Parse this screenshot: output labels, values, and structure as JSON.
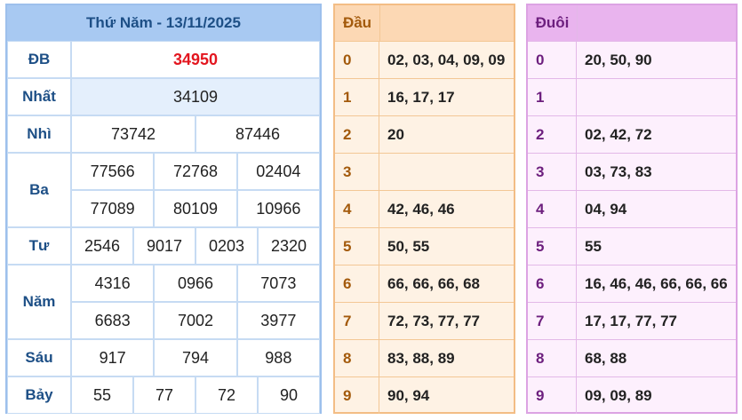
{
  "results": {
    "title": "Thứ Năm - 13/11/2025",
    "prizes": [
      {
        "label": "ĐB",
        "rows": [
          [
            "34950"
          ]
        ]
      },
      {
        "label": "Nhất",
        "rows": [
          [
            "34109"
          ]
        ]
      },
      {
        "label": "Nhì",
        "rows": [
          [
            "73742",
            "87446"
          ]
        ]
      },
      {
        "label": "Ba",
        "rows": [
          [
            "77566",
            "72768",
            "02404"
          ],
          [
            "77089",
            "80109",
            "10966"
          ]
        ]
      },
      {
        "label": "Tư",
        "rows": [
          [
            "2546",
            "9017",
            "0203",
            "2320"
          ]
        ]
      },
      {
        "label": "Năm",
        "rows": [
          [
            "4316",
            "0966",
            "7073"
          ],
          [
            "6683",
            "7002",
            "3977"
          ]
        ]
      },
      {
        "label": "Sáu",
        "rows": [
          [
            "917",
            "794",
            "988"
          ]
        ]
      },
      {
        "label": "Bảy",
        "rows": [
          [
            "55",
            "77",
            "72",
            "90"
          ]
        ]
      }
    ]
  },
  "head": {
    "title": "Đầu",
    "rows": [
      {
        "digit": "0",
        "numbers": "02, 03, 04, 09, 09"
      },
      {
        "digit": "1",
        "numbers": "16, 17, 17"
      },
      {
        "digit": "2",
        "numbers": "20"
      },
      {
        "digit": "3",
        "numbers": null
      },
      {
        "digit": "4",
        "numbers": "42, 46, 46"
      },
      {
        "digit": "5",
        "numbers": "50, 55"
      },
      {
        "digit": "6",
        "numbers": "66, 66, 66, 68"
      },
      {
        "digit": "7",
        "numbers": "72, 73, 77, 77"
      },
      {
        "digit": "8",
        "numbers": "83, 88, 89"
      },
      {
        "digit": "9",
        "numbers": "90, 94"
      }
    ]
  },
  "tail": {
    "title": "Đuôi",
    "rows": [
      {
        "digit": "0",
        "numbers": "20, 50, 90"
      },
      {
        "digit": "1",
        "numbers": null
      },
      {
        "digit": "2",
        "numbers": "02, 42, 72"
      },
      {
        "digit": "3",
        "numbers": "03, 73, 83"
      },
      {
        "digit": "4",
        "numbers": "04, 94"
      },
      {
        "digit": "5",
        "numbers": "55"
      },
      {
        "digit": "6",
        "numbers": "16, 46, 46, 66, 66, 66"
      },
      {
        "digit": "7",
        "numbers": "17, 17, 77, 77"
      },
      {
        "digit": "8",
        "numbers": "68, 88"
      },
      {
        "digit": "9",
        "numbers": "09, 09, 89"
      }
    ]
  }
}
